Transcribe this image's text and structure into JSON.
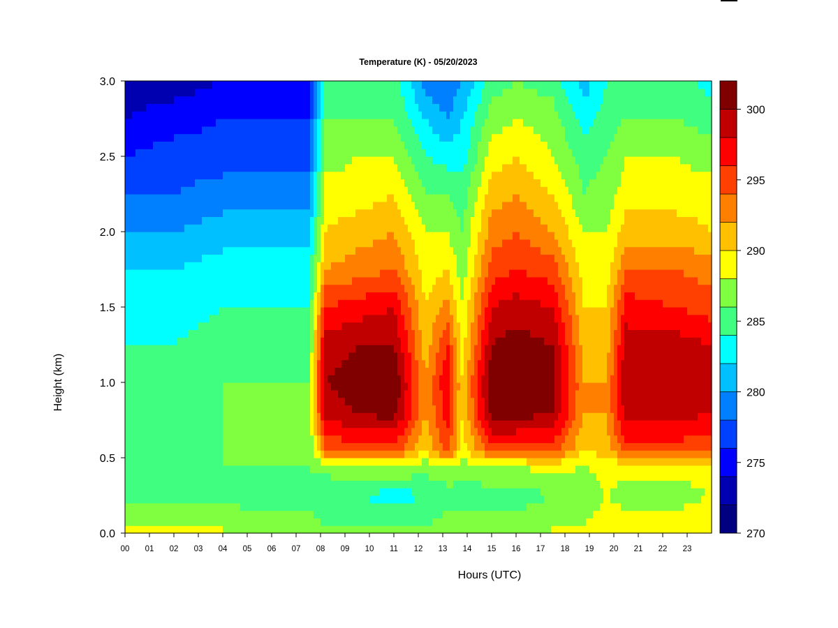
{
  "chart_data": {
    "type": "heatmap",
    "title": "Temperature (K) - 05/20/2023",
    "xlabel": "Hours (UTC)",
    "ylabel": "Height (km)",
    "xlim": [
      0,
      24
    ],
    "ylim": [
      0.0,
      3.0
    ],
    "x_ticks": [
      "00",
      "01",
      "02",
      "03",
      "04",
      "05",
      "06",
      "07",
      "08",
      "09",
      "10",
      "11",
      "12",
      "13",
      "14",
      "15",
      "16",
      "17",
      "18",
      "19",
      "20",
      "21",
      "22",
      "23"
    ],
    "y_ticks": [
      "0.0",
      "0.5",
      "1.0",
      "1.5",
      "2.0",
      "2.5",
      "3.0"
    ],
    "colorbar": {
      "min": 270,
      "max": 302,
      "step": 2,
      "tick_values": [
        270,
        275,
        280,
        285,
        290,
        295,
        300
      ],
      "tick_labels": [
        "270",
        "275",
        "280",
        "285",
        "290",
        "295",
        "300"
      ],
      "colors": [
        "#000080",
        "#0000b0",
        "#0000ff",
        "#0040ff",
        "#0080ff",
        "#00c0ff",
        "#00ffff",
        "#40ff80",
        "#80ff40",
        "#ffff00",
        "#ffc000",
        "#ff8000",
        "#ff4000",
        "#ff0000",
        "#c00000",
        "#800000"
      ]
    },
    "height_km": [
      0.05,
      0.25,
      0.45,
      0.55,
      0.8,
      1.0,
      1.25,
      1.5,
      1.75,
      2.0,
      2.25,
      2.5,
      2.75,
      3.0
    ],
    "profiles": [
      {
        "hour": 0,
        "t": [
          288,
          285,
          285,
          285,
          285,
          285,
          284,
          283,
          282,
          280,
          278,
          276,
          274,
          273
        ]
      },
      {
        "hour": 2,
        "t": [
          288,
          285,
          285,
          285,
          285,
          285,
          284,
          283,
          282,
          280,
          278,
          277,
          275,
          273
        ]
      },
      {
        "hour": 4,
        "t": [
          288,
          285,
          286,
          286,
          286,
          286,
          285,
          284,
          283,
          281,
          279,
          277,
          276,
          274
        ]
      },
      {
        "hour": 6,
        "t": [
          287,
          285,
          286,
          286,
          286,
          286,
          285,
          284,
          283,
          281,
          279,
          277,
          276,
          274
        ]
      },
      {
        "hour": 7.5,
        "t": [
          287,
          285,
          286,
          286,
          286,
          286,
          285,
          284,
          283,
          281,
          279,
          277,
          276,
          275
        ]
      },
      {
        "hour": 8.2,
        "t": [
          286,
          284,
          287,
          294,
          299,
          300,
          299,
          296,
          292,
          290,
          289,
          287,
          286,
          284
        ]
      },
      {
        "hour": 9.5,
        "t": [
          286,
          284,
          288,
          295,
          300,
          301,
          300,
          297,
          293,
          291,
          289,
          288,
          286,
          285
        ]
      },
      {
        "hour": 11,
        "t": [
          286,
          283,
          288,
          295,
          301,
          302,
          300,
          298,
          294,
          292,
          290,
          288,
          286,
          285
        ]
      },
      {
        "hour": 12.3,
        "t": [
          286,
          284,
          287,
          290,
          292,
          292,
          291,
          290,
          289,
          288,
          286,
          284,
          282,
          279
        ]
      },
      {
        "hour": 13.2,
        "t": [
          287,
          285,
          288,
          295,
          297,
          298,
          296,
          293,
          290,
          288,
          286,
          283,
          280,
          278
        ]
      },
      {
        "hour": 13.8,
        "t": [
          287,
          285,
          287,
          289,
          290,
          290,
          289,
          288,
          287,
          286,
          285,
          283,
          282,
          280
        ]
      },
      {
        "hour": 15,
        "t": [
          287,
          285,
          288,
          295,
          301,
          302,
          300,
          298,
          295,
          293,
          291,
          289,
          287,
          285
        ]
      },
      {
        "hour": 16,
        "t": [
          287,
          285,
          288,
          295,
          301,
          302,
          301,
          299,
          296,
          294,
          292,
          290,
          288,
          286
        ]
      },
      {
        "hour": 17.5,
        "t": [
          288,
          286,
          289,
          295,
          300,
          301,
          300,
          298,
          295,
          292,
          290,
          288,
          287,
          285
        ]
      },
      {
        "hour": 18.8,
        "t": [
          288,
          286,
          288,
          290,
          292,
          292,
          291,
          290,
          289,
          288,
          286,
          285,
          283,
          281
        ]
      },
      {
        "hour": 19.7,
        "t": [
          290,
          288,
          289,
          291,
          292,
          292,
          291,
          290,
          289,
          288,
          287,
          286,
          285,
          284
        ]
      },
      {
        "hour": 20.5,
        "t": [
          289,
          287,
          289,
          295,
          299,
          300,
          299,
          297,
          294,
          291,
          289,
          288,
          286,
          285
        ]
      },
      {
        "hour": 22.5,
        "t": [
          289,
          287,
          289,
          295,
          299,
          300,
          299,
          296,
          294,
          291,
          289,
          288,
          286,
          285
        ]
      },
      {
        "hour": 24,
        "t": [
          290,
          288,
          289,
          294,
          298,
          299,
          298,
          295,
          293,
          290,
          289,
          287,
          285,
          283
        ]
      }
    ]
  }
}
